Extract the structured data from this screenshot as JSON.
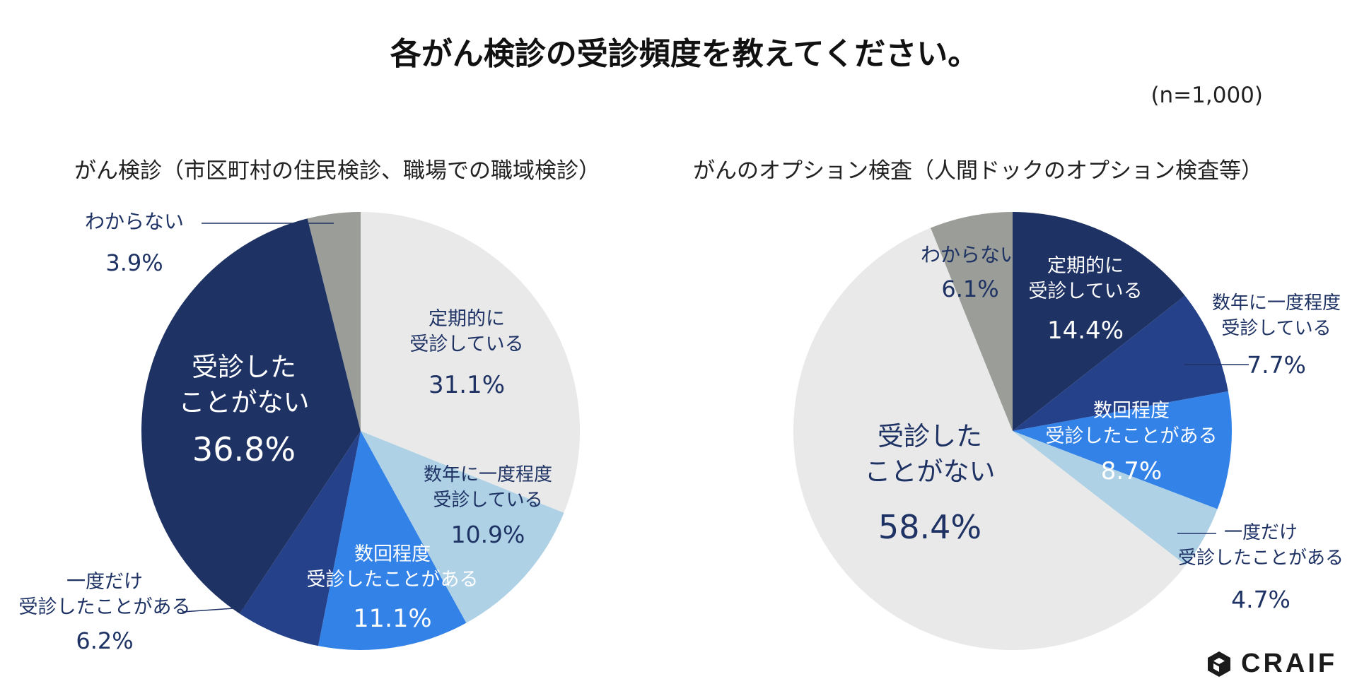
{
  "title": "各がん検診の受診頻度を教えてください。",
  "sample_size": "(n=1,000)",
  "logo": {
    "text": "CRAIF"
  },
  "chart_data": [
    {
      "type": "pie",
      "title": "がん検診（市区町村の住民検診、職場での職域検診）",
      "slices": [
        {
          "label_lines": [
            "定期的に",
            "受診している"
          ],
          "value": 31.1,
          "value_label": "31.1%",
          "color": "#e9e9e9",
          "text_color": "#1e3264"
        },
        {
          "label_lines": [
            "数年に一度程度",
            "受診している"
          ],
          "value": 10.9,
          "value_label": "10.9%",
          "color": "#aed1e5",
          "text_color": "#1e3264"
        },
        {
          "label_lines": [
            "数回程度",
            "受診したことがある"
          ],
          "value": 11.1,
          "value_label": "11.1%",
          "color": "#3282e8",
          "text_color": "#ffffff"
        },
        {
          "label_lines": [
            "一度だけ",
            "受診したことがある"
          ],
          "value": 6.2,
          "value_label": "6.2%",
          "color": "#25418a",
          "text_color": "#1e3264"
        },
        {
          "label_lines": [
            "受診した",
            "ことがない"
          ],
          "value": 36.8,
          "value_label": "36.8%",
          "color": "#1e3264",
          "text_color": "#ffffff"
        },
        {
          "label_lines": [
            "わからない"
          ],
          "value": 3.9,
          "value_label": "3.9%",
          "color": "#9b9d98",
          "text_color": "#1e3264"
        }
      ]
    },
    {
      "type": "pie",
      "title": "がんのオプション検査（人間ドックのオプション検査等）",
      "slices": [
        {
          "label_lines": [
            "定期的に",
            "受診している"
          ],
          "value": 14.4,
          "value_label": "14.4%",
          "color": "#1e3264",
          "text_color": "#ffffff"
        },
        {
          "label_lines": [
            "数年に一度程度",
            "受診している"
          ],
          "value": 7.7,
          "value_label": "7.7%",
          "color": "#25418a",
          "text_color": "#1e3264"
        },
        {
          "label_lines": [
            "数回程度",
            "受診したことがある"
          ],
          "value": 8.7,
          "value_label": "8.7%",
          "color": "#3282e8",
          "text_color": "#ffffff"
        },
        {
          "label_lines": [
            "一度だけ",
            "受診したことがある"
          ],
          "value": 4.7,
          "value_label": "4.7%",
          "color": "#aed1e5",
          "text_color": "#1e3264"
        },
        {
          "label_lines": [
            "受診した",
            "ことがない"
          ],
          "value": 58.4,
          "value_label": "58.4%",
          "color": "#e9e9e9",
          "text_color": "#1e3264"
        },
        {
          "label_lines": [
            "わからない"
          ],
          "value": 6.1,
          "value_label": "6.1%",
          "color": "#9b9d98",
          "text_color": "#1e3264"
        }
      ]
    }
  ]
}
